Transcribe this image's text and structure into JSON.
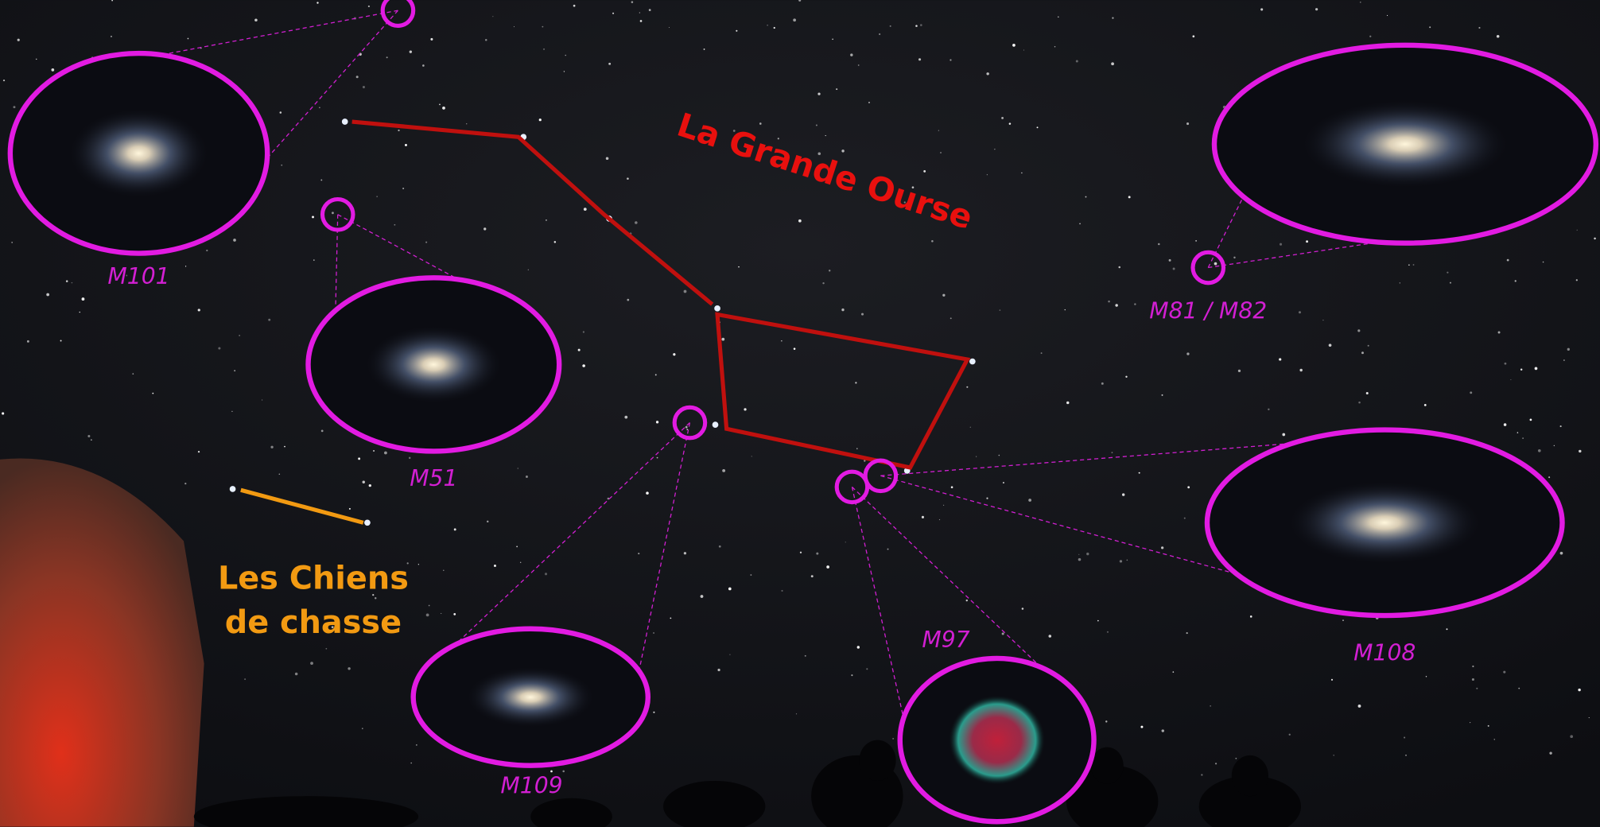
{
  "constellations": {
    "big_dipper": "La Grande Ourse",
    "canes_venatici": [
      "Les Chiens",
      "de chasse"
    ]
  },
  "objects": [
    {
      "label": "M101"
    },
    {
      "label": "M51"
    },
    {
      "label": "M81 / M82"
    },
    {
      "label": "M108"
    },
    {
      "label": "M97"
    },
    {
      "label": "M109"
    }
  ]
}
